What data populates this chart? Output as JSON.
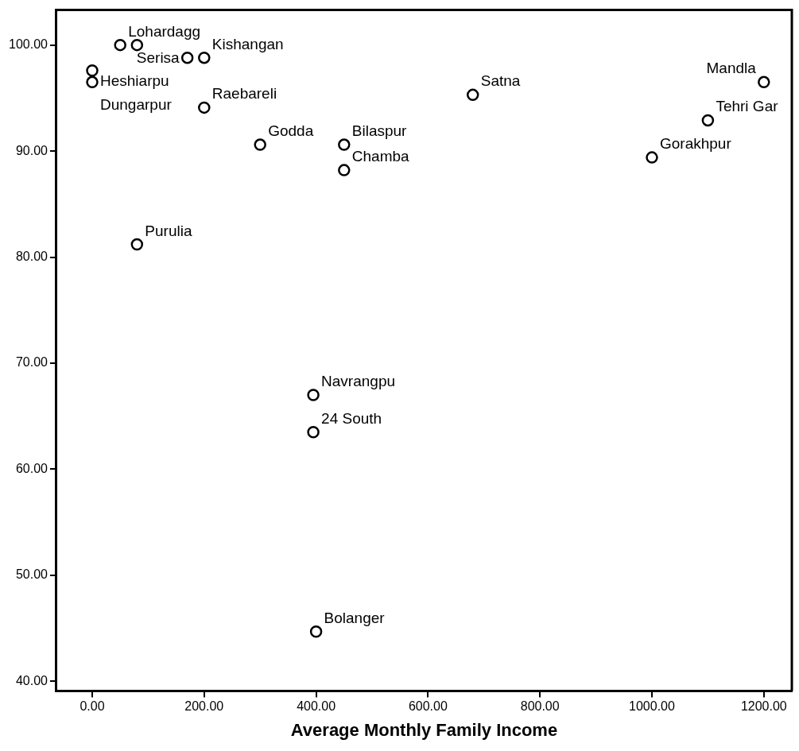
{
  "chart_data": {
    "type": "scatter",
    "xlabel": "Average Monthly Family Income",
    "x": [
      50,
      80,
      170,
      200,
      0,
      0,
      200,
      300,
      450,
      450,
      680,
      1200,
      1100,
      1000,
      80,
      395,
      395,
      400
    ],
    "series": [
      {
        "color": "#000000",
        "values": [
          100,
          100,
          98.8,
          98.8,
          97.6,
          96.5,
          94.1,
          90.6,
          90.6,
          88.2,
          95.3,
          96.5,
          92.9,
          89.4,
          81.2,
          67.0,
          63.5,
          44.7
        ]
      }
    ],
    "xlim": [
      -64,
      1250
    ],
    "ylim": [
      39.1,
      103.3
    ],
    "xticks": [
      {
        "value": 0,
        "label": "0.00"
      },
      {
        "value": 200,
        "label": "200.00"
      },
      {
        "value": 400,
        "label": "400.00"
      },
      {
        "value": 600,
        "label": "600.00"
      },
      {
        "value": 800,
        "label": "800.00"
      },
      {
        "value": 1000,
        "label": "1000.00"
      },
      {
        "value": 1200,
        "label": "1200.00"
      }
    ],
    "yticks": [
      {
        "value": 40,
        "label": "40.00"
      },
      {
        "value": 50,
        "label": "50.00"
      },
      {
        "value": 60,
        "label": "60.00"
      },
      {
        "value": 70,
        "label": "70.00"
      },
      {
        "value": 80,
        "label": "80.00"
      },
      {
        "value": 90,
        "label": "90.00"
      },
      {
        "value": 100,
        "label": "100.00"
      }
    ],
    "marker": "circle",
    "grid": false,
    "legend": false,
    "annotations": [
      {
        "text": "Lohardagg",
        "x": 50,
        "y": 100
      },
      {
        "text": "Kishangan",
        "x": 200,
        "y": 98.8
      },
      {
        "text": "Serisa",
        "x": 170,
        "y": 98.8
      },
      {
        "text": "Heshiarpu",
        "x": 0,
        "y": 97.6
      },
      {
        "text": "Dungarpur",
        "x": 0,
        "y": 96.5
      },
      {
        "text": "Raebareli",
        "x": 200,
        "y": 94.1
      },
      {
        "text": "Godda",
        "x": 300,
        "y": 90.6
      },
      {
        "text": "Bilaspur",
        "x": 450,
        "y": 90.6
      },
      {
        "text": "Chamba",
        "x": 450,
        "y": 88.2
      },
      {
        "text": "Satna",
        "x": 680,
        "y": 95.3
      },
      {
        "text": "Mandla",
        "x": 1200,
        "y": 96.5
      },
      {
        "text": "Tehri Gar",
        "x": 1100,
        "y": 92.9
      },
      {
        "text": "Gorakhpur",
        "x": 1000,
        "y": 89.4
      },
      {
        "text": "Purulia",
        "x": 80,
        "y": 81.2
      },
      {
        "text": "Navrangpu",
        "x": 395,
        "y": 67.0
      },
      {
        "text": "24 South",
        "x": 395,
        "y": 63.5
      },
      {
        "text": "Bolanger",
        "x": 400,
        "y": 44.7
      }
    ]
  }
}
